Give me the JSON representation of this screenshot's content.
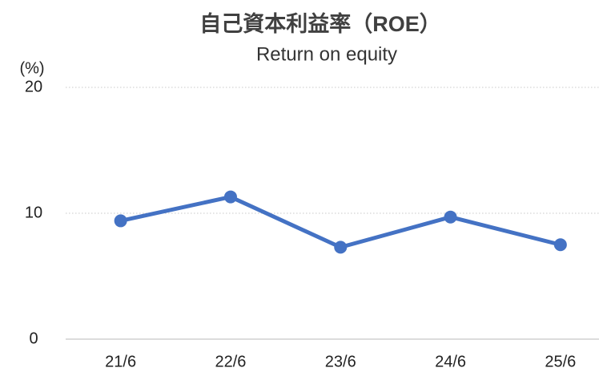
{
  "chart_data": {
    "type": "line",
    "title": "自己資本利益率（ROE）",
    "subtitle": "Return on equity",
    "y_label": "(%)",
    "categories": [
      "21/6",
      "22/6",
      "23/6",
      "24/6",
      "25/6"
    ],
    "series": [
      {
        "name": "ROE",
        "color": "#4472c4",
        "values": [
          9.4,
          11.3,
          7.3,
          9.7,
          7.5
        ]
      }
    ],
    "ylim": [
      0,
      20
    ],
    "yticks": [
      0,
      10,
      20
    ],
    "grid": true
  }
}
